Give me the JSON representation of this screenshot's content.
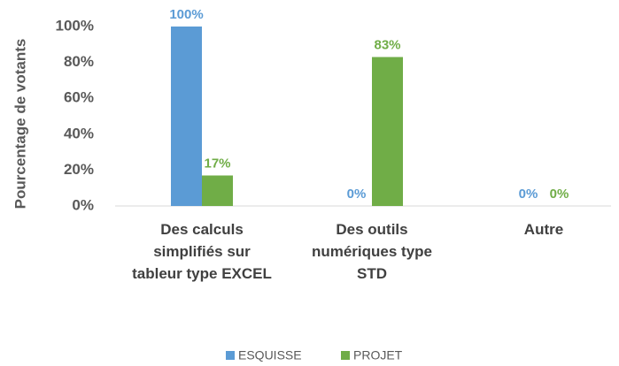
{
  "chart_data": {
    "type": "bar",
    "y_label": "Pourcentage de votants",
    "categories": [
      "Des calculs simplifiés sur tableur type EXCEL",
      "Des outils numériques type STD",
      "Autre"
    ],
    "series": [
      {
        "name": "ESQUISSE",
        "color": "#5b9bd5",
        "values": [
          100,
          0,
          0
        ],
        "value_labels": [
          "100%",
          "0%",
          "0%"
        ]
      },
      {
        "name": "PROJET",
        "color": "#70ad47",
        "values": [
          17,
          83,
          0
        ],
        "value_labels": [
          "17%",
          "83%",
          "0%"
        ]
      }
    ],
    "ylim": [
      0,
      100
    ],
    "yticks": [
      {
        "value": 0,
        "label": "0%"
      },
      {
        "value": 20,
        "label": "20%"
      },
      {
        "value": 40,
        "label": "40%"
      },
      {
        "value": 60,
        "label": "60%"
      },
      {
        "value": 80,
        "label": "80%"
      },
      {
        "value": 100,
        "label": "100%"
      }
    ],
    "grid": false,
    "legend": "bottom"
  }
}
